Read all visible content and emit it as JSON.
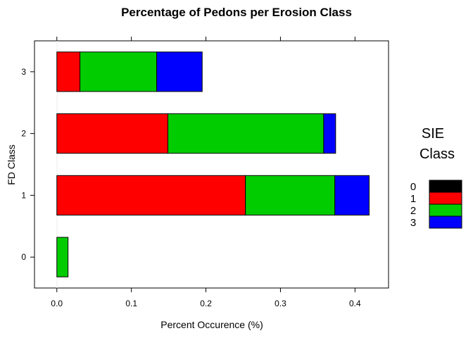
{
  "chart_data": {
    "type": "bar",
    "orientation": "horizontal",
    "stacked": true,
    "title": "Percentage of Pedons per Erosion Class",
    "xlabel": "Percent Occurence (%)",
    "ylabel": "FD Class",
    "xlim": [
      -0.03,
      0.445
    ],
    "x_ticks": [
      0.0,
      0.1,
      0.2,
      0.3,
      0.4
    ],
    "x_tick_labels": [
      "0.0",
      "0.1",
      "0.2",
      "0.3",
      "0.4"
    ],
    "categories": [
      "0",
      "1",
      "2",
      "3"
    ],
    "series": [
      {
        "name": "0",
        "color": "#000000",
        "values": [
          0.0,
          0.0,
          0.0,
          0.0
        ]
      },
      {
        "name": "1",
        "color": "#ff0000",
        "values": [
          0.0,
          0.253,
          0.149,
          0.031
        ]
      },
      {
        "name": "2",
        "color": "#00cc00",
        "values": [
          0.015,
          0.12,
          0.209,
          0.103
        ]
      },
      {
        "name": "3",
        "color": "#0000ff",
        "values": [
          0.0,
          0.046,
          0.016,
          0.061
        ]
      }
    ],
    "legend": {
      "title_line1": "SIE",
      "title_line2": "Class",
      "position": "right"
    },
    "grid": false
  }
}
